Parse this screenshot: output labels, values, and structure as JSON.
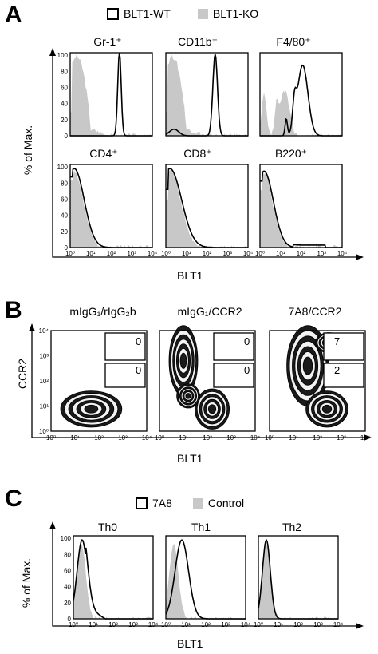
{
  "panel_a": {
    "letter": "A",
    "legend": [
      {
        "label": "BLT1-WT",
        "style": "open"
      },
      {
        "label": "BLT1-KO",
        "style": "filled-gray"
      }
    ],
    "y_axis_title": "% of Max.",
    "x_axis_title": "BLT1",
    "y_ticks": [
      "0",
      "20",
      "40",
      "60",
      "80",
      "100"
    ],
    "x_ticks": [
      "10⁰",
      "10¹",
      "10²",
      "10³",
      "10⁴"
    ],
    "plots": [
      {
        "title": "Gr-1⁺"
      },
      {
        "title": "CD11b⁺"
      },
      {
        "title": "F4/80⁺"
      },
      {
        "title": "CD4⁺"
      },
      {
        "title": "CD8⁺"
      },
      {
        "title": "B220⁺"
      }
    ]
  },
  "panel_b": {
    "letter": "B",
    "y_axis_title": "CCR2",
    "x_axis_title": "BLT1",
    "x_ticks": [
      "10⁰",
      "10¹",
      "10²",
      "10³",
      "10⁴"
    ],
    "y_ticks": [
      "10⁰",
      "10¹",
      "10²",
      "10³",
      "10⁴"
    ],
    "plots": [
      {
        "title": "mIgG₁/rIgG₂b",
        "gates": [
          "0",
          "0"
        ]
      },
      {
        "title": "mIgG₁/CCR2",
        "gates": [
          "0",
          "0"
        ]
      },
      {
        "title": "7A8/CCR2",
        "gates": [
          "7",
          "2"
        ]
      }
    ]
  },
  "panel_c": {
    "letter": "C",
    "legend": [
      {
        "label": "7A8",
        "style": "open"
      },
      {
        "label": "Control",
        "style": "filled-gray"
      }
    ],
    "y_axis_title": "% of Max.",
    "x_axis_title": "BLT1",
    "y_ticks": [
      "0",
      "20",
      "40",
      "60",
      "80",
      "100"
    ],
    "x_ticks": [
      "10⁰",
      "10¹",
      "10²",
      "10³",
      "10⁴"
    ],
    "plots": [
      {
        "title": "Th0"
      },
      {
        "title": "Th1"
      },
      {
        "title": "Th2"
      }
    ]
  },
  "colors": {
    "fill_gray": "#c8c8c8",
    "line": "#000000",
    "contour_dark": "#111111"
  }
}
